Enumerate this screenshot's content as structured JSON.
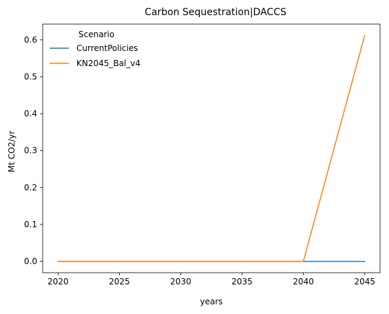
{
  "chart_data": {
    "type": "line",
    "title": "Carbon Sequestration|DACCS",
    "xlabel": "years",
    "ylabel": "Mt CO2/yr",
    "x": [
      2020,
      2025,
      2030,
      2035,
      2040,
      2045
    ],
    "xticks": [
      2020,
      2025,
      2030,
      2035,
      2040,
      2045
    ],
    "xtick_labels": [
      "2020",
      "2025",
      "2030",
      "2035",
      "2040",
      "2045"
    ],
    "xlim": [
      2018.75,
      2046.25
    ],
    "yticks": [
      0.0,
      0.1,
      0.2,
      0.3,
      0.4,
      0.5,
      0.6
    ],
    "ytick_labels": [
      "0.0",
      "0.1",
      "0.2",
      "0.3",
      "0.4",
      "0.5",
      "0.6"
    ],
    "ylim": [
      -0.0306,
      0.6426
    ],
    "grid": false,
    "legend": {
      "title": "Scenario",
      "placement": "top-left"
    },
    "series": [
      {
        "name": "CurrentPolicies",
        "color": "#1f77b4",
        "values": [
          0,
          0,
          0,
          0,
          0,
          0
        ]
      },
      {
        "name": "KN2045_Bal_v4",
        "color": "#ff7f0e",
        "values": [
          0,
          0,
          0,
          0,
          0,
          0.612
        ]
      }
    ]
  }
}
